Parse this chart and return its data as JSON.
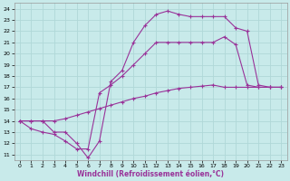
{
  "xlabel": "Windchill (Refroidissement éolien,°C)",
  "xlim": [
    -0.5,
    23.5
  ],
  "ylim": [
    10.5,
    24.5
  ],
  "xticks": [
    0,
    1,
    2,
    3,
    4,
    5,
    6,
    7,
    8,
    9,
    10,
    11,
    12,
    13,
    14,
    15,
    16,
    17,
    18,
    19,
    20,
    21,
    22,
    23
  ],
  "yticks": [
    11,
    12,
    13,
    14,
    15,
    16,
    17,
    18,
    19,
    20,
    21,
    22,
    23,
    24
  ],
  "background_color": "#c8eaea",
  "grid_color": "#b0d8d8",
  "line_color": "#993399",
  "line1_x": [
    0,
    1,
    2,
    3,
    4,
    5,
    6,
    7,
    8,
    9,
    10,
    11,
    12,
    13,
    14,
    15,
    16,
    17,
    18,
    19,
    20,
    21,
    22,
    23
  ],
  "line1_y": [
    14,
    14,
    14,
    13,
    13,
    12,
    10.7,
    12.2,
    17.5,
    18.5,
    21,
    22.5,
    23.5,
    23.8,
    23.5,
    23.3,
    23.3,
    23.3,
    23.3,
    22.3,
    22,
    17.2,
    17,
    17
  ],
  "line2_x": [
    0,
    1,
    2,
    3,
    4,
    5,
    6,
    7,
    8,
    9,
    10,
    11,
    12,
    13,
    14,
    15,
    16,
    17,
    18,
    19,
    20,
    21,
    22,
    23
  ],
  "line2_y": [
    14,
    13.3,
    13,
    12.8,
    12.2,
    11.5,
    11.5,
    16.5,
    17.2,
    18,
    19,
    20,
    21,
    21,
    21,
    21,
    21,
    21,
    21.5,
    20.8,
    17.2,
    17,
    17,
    17
  ],
  "line3_x": [
    0,
    1,
    2,
    3,
    4,
    5,
    6,
    7,
    8,
    9,
    10,
    11,
    12,
    13,
    14,
    15,
    16,
    17,
    18,
    19,
    20,
    21,
    22,
    23
  ],
  "line3_y": [
    14,
    14,
    14,
    14,
    14.2,
    14.5,
    14.8,
    15.1,
    15.4,
    15.7,
    16,
    16.2,
    16.5,
    16.7,
    16.9,
    17,
    17.1,
    17.2,
    17,
    17,
    17,
    17,
    17,
    17
  ]
}
